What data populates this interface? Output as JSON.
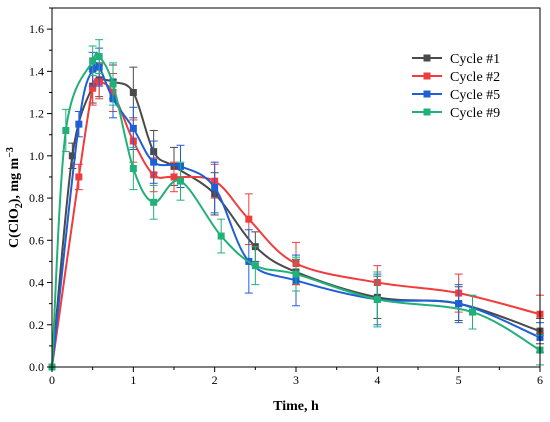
{
  "chart_data": {
    "type": "line",
    "xlabel": "Time, h",
    "ylabel_main": "C(ClO",
    "ylabel_sub": "2",
    "ylabel_unit": "), mg m",
    "ylabel_sup": "−3",
    "xlim": [
      0,
      6
    ],
    "ylim": [
      0,
      1.7
    ],
    "xticks": [
      0,
      1,
      2,
      3,
      4,
      5,
      6
    ],
    "yticks": [
      0.0,
      0.2,
      0.4,
      0.6,
      0.8,
      1.0,
      1.2,
      1.4,
      1.6
    ],
    "legend_position": "top-right",
    "series": [
      {
        "name": "Cycle #1",
        "color": "#4a4a4a",
        "x": [
          0,
          0.25,
          0.5,
          0.58,
          0.75,
          1.0,
          1.25,
          1.5,
          2.0,
          2.5,
          3.0,
          4.0,
          5.0,
          6.0
        ],
        "y": [
          0,
          1.0,
          1.33,
          1.36,
          1.35,
          1.3,
          1.02,
          0.95,
          0.82,
          0.57,
          0.45,
          0.33,
          0.3,
          0.17
        ],
        "err": [
          0,
          0.06,
          0.08,
          0.08,
          0.08,
          0.12,
          0.1,
          0.09,
          0.1,
          0.07,
          0.06,
          0.1,
          0.08,
          0.06
        ]
      },
      {
        "name": "Cycle #2",
        "color": "#f03c3c",
        "x": [
          0,
          0.33,
          0.5,
          0.58,
          0.75,
          1.0,
          1.25,
          1.5,
          2.0,
          2.42,
          3.0,
          4.0,
          5.0,
          6.0
        ],
        "y": [
          0,
          0.9,
          1.32,
          1.35,
          1.3,
          1.07,
          0.91,
          0.9,
          0.88,
          0.7,
          0.49,
          0.4,
          0.35,
          0.25
        ],
        "err": [
          0,
          0.06,
          0.08,
          0.08,
          0.09,
          0.1,
          0.08,
          0.07,
          0.08,
          0.12,
          0.1,
          0.08,
          0.09,
          0.09
        ]
      },
      {
        "name": "Cycle #5",
        "color": "#1f5fd6",
        "x": [
          0,
          0.33,
          0.5,
          0.58,
          0.75,
          1.0,
          1.25,
          1.58,
          2.0,
          2.42,
          3.0,
          4.0,
          5.0,
          6.0
        ],
        "y": [
          0,
          1.15,
          1.41,
          1.42,
          1.27,
          1.13,
          0.97,
          0.95,
          0.85,
          0.5,
          0.41,
          0.32,
          0.3,
          0.14
        ],
        "err": [
          0,
          0.06,
          0.08,
          0.09,
          0.09,
          0.1,
          0.1,
          0.1,
          0.12,
          0.15,
          0.12,
          0.12,
          0.09,
          0.07
        ]
      },
      {
        "name": "Cycle #9",
        "color": "#22b07a",
        "x": [
          0,
          0.17,
          0.5,
          0.58,
          0.75,
          1.0,
          1.25,
          1.58,
          2.08,
          2.5,
          3.0,
          4.0,
          5.17,
          6.0
        ],
        "y": [
          0,
          1.12,
          1.45,
          1.47,
          1.34,
          0.94,
          0.78,
          0.88,
          0.62,
          0.48,
          0.44,
          0.32,
          0.26,
          0.08
        ],
        "err": [
          0,
          0.1,
          0.07,
          0.08,
          0.1,
          0.1,
          0.08,
          0.09,
          0.08,
          0.09,
          0.08,
          0.13,
          0.08,
          0.07
        ]
      }
    ]
  }
}
